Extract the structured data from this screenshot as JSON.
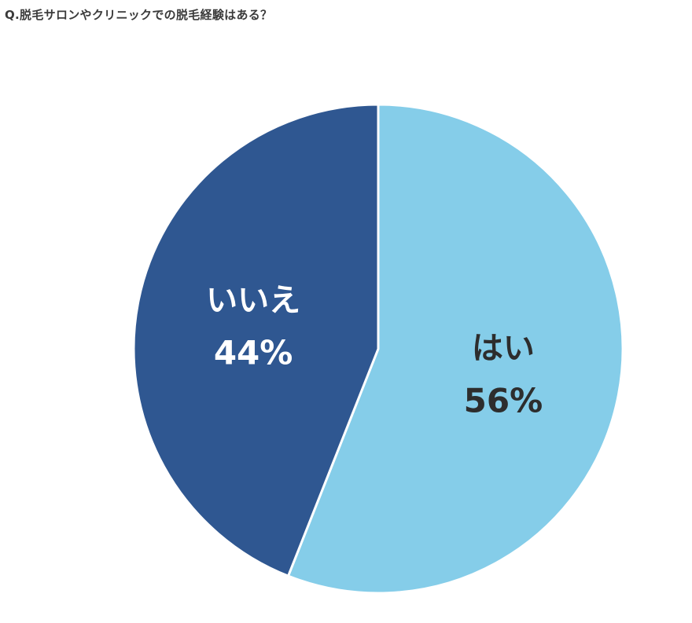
{
  "chart_data": {
    "type": "pie",
    "title": "Q.脱毛サロンやクリニックでの脱毛経験はある？",
    "slices": [
      {
        "label": "はい",
        "value": 56,
        "value_label": "56%",
        "color": "#85cde9",
        "text_color": "#2d2d2d"
      },
      {
        "label": "いいえ",
        "value": 44,
        "value_label": "44%",
        "color": "#2f5791",
        "text_color": "#ffffff"
      }
    ],
    "start_angle": "12 o'clock",
    "direction": "clockwise",
    "legend": "none"
  }
}
